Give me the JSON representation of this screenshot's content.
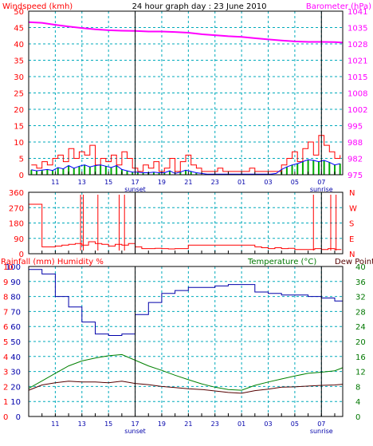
{
  "colors": {
    "wind_axis": "#ff0000",
    "baro_axis": "#ff00ff",
    "grid": "#00aabb",
    "axis_text_dark": "#0000aa",
    "wind_gust": "#ff0000",
    "wind_avg": "#0000ff",
    "wind_low": "#00aa00",
    "baro_line": "#ff00ff",
    "direction": "#ff0000",
    "humidity": "#0000aa",
    "temperature": "#008000",
    "dew_point": "#550000",
    "temp_axis": "#007700"
  },
  "chart_data": [
    {
      "type": "line",
      "title": "24 hour graph day : 23 June 2010",
      "left_axis_label": "Windspeed (kmh)",
      "right_axis_label": "Barometer (hPa)",
      "left_ticks": [
        "50",
        "45",
        "40",
        "35",
        "30",
        "25",
        "20",
        "15",
        "10",
        "5",
        "0"
      ],
      "right_ticks": [
        "1041",
        "1035",
        "1028",
        "1021",
        "1015",
        "1008",
        "1002",
        "995",
        "988",
        "982",
        "975"
      ],
      "x_ticks": [
        "11",
        "13",
        "15",
        "17",
        "19",
        "21",
        "23",
        "01",
        "03",
        "05",
        "07"
      ],
      "x_markers": [
        {
          "hour": 17,
          "label": "sunset"
        },
        {
          "hour": 31,
          "label": "sunrise"
        }
      ],
      "x_range_hours": [
        9.0,
        32.6
      ],
      "ylim_left": [
        0,
        50
      ],
      "ylim_right": [
        975,
        1041
      ],
      "series": [
        {
          "axis": "right",
          "x": [
            9.0,
            10.0,
            11.0,
            12.0,
            13.0,
            14.0,
            15.0,
            16.0,
            17.0,
            18.0,
            19.0,
            20.0,
            21.0,
            22.0,
            23.0,
            24.0,
            25.0,
            26.0,
            27.0,
            28.0,
            29.0,
            30.0,
            31.0,
            32.0,
            32.6
          ],
          "values": [
            1036.6,
            1036.3,
            1035.5,
            1034.8,
            1034.2,
            1033.7,
            1033.3,
            1033.1,
            1033.0,
            1032.8,
            1032.8,
            1032.6,
            1032.3,
            1031.7,
            1031.3,
            1030.9,
            1030.6,
            1030.1,
            1029.6,
            1029.2,
            1028.8,
            1028.6,
            1028.6,
            1028.5,
            1028.3
          ]
        },
        {
          "axis": "left",
          "x": [
            9.2,
            9.6,
            10.0,
            10.4,
            10.8,
            11.2,
            11.6,
            12.0,
            12.4,
            12.8,
            13.2,
            13.6,
            14.0,
            14.4,
            14.8,
            15.2,
            15.6,
            16.0,
            16.4,
            16.8,
            17.2,
            17.6,
            18.0,
            18.4,
            18.8,
            19.2,
            19.6,
            20.0,
            20.4,
            20.8,
            21.2,
            21.6,
            22.0,
            22.4,
            22.8,
            23.2,
            23.6,
            24.0,
            24.4,
            24.8,
            25.2,
            25.6,
            26.0,
            26.4,
            26.8,
            27.2,
            27.6,
            28.0,
            28.4,
            28.8,
            29.2,
            29.6,
            30.0,
            30.4,
            30.8,
            31.2,
            31.6,
            32.0,
            32.4
          ],
          "values": [
            3,
            2,
            4,
            3,
            5,
            6,
            4,
            8,
            5,
            7,
            6,
            9,
            3,
            5,
            4,
            6,
            3,
            7,
            5,
            2,
            1,
            3,
            2,
            4,
            1,
            2,
            5,
            1,
            4,
            6,
            3,
            2,
            1,
            1,
            1,
            2,
            1,
            1,
            1,
            1,
            1,
            2,
            1,
            1,
            1,
            1,
            1,
            3,
            5,
            7,
            4,
            8,
            10,
            6,
            12,
            9,
            7,
            5,
            6
          ]
        },
        {
          "axis": "left",
          "x": [
            9.2,
            9.6,
            10.0,
            10.4,
            10.8,
            11.2,
            11.6,
            12.0,
            12.4,
            12.8,
            13.2,
            13.6,
            14.0,
            14.4,
            14.8,
            15.2,
            15.6,
            16.0,
            16.4,
            16.8,
            17.2,
            17.6,
            18.0,
            18.4,
            18.8,
            19.2,
            19.6,
            20.0,
            20.4,
            20.8,
            21.2,
            21.6,
            22.0,
            22.4,
            22.8,
            23.2,
            23.6,
            24.0,
            24.4,
            24.8,
            25.2,
            25.6,
            26.0,
            26.4,
            26.8,
            27.2,
            27.6,
            28.0,
            28.4,
            28.8,
            29.2,
            29.6,
            30.0,
            30.4,
            30.8,
            31.2,
            31.6,
            32.0,
            32.4
          ],
          "values": [
            1.5,
            1.2,
            1.4,
            1.6,
            1.3,
            2.2,
            1.8,
            2.8,
            2.0,
            2.6,
            3.0,
            2.4,
            2.8,
            3.0,
            2.6,
            2.2,
            2.8,
            1.6,
            1.2,
            0.8,
            0.8,
            0.6,
            0.6,
            0.8,
            0.6,
            0.6,
            1.2,
            0.4,
            0.8,
            1.4,
            1.0,
            0.6,
            0.4,
            0.2,
            0.2,
            0.2,
            0.2,
            0.2,
            0.2,
            0.2,
            0.2,
            0.2,
            0.2,
            0.2,
            0.2,
            0.2,
            0.4,
            1.6,
            2.4,
            3.0,
            3.4,
            4.0,
            4.6,
            4.4,
            4.0,
            4.4,
            3.8,
            3.0,
            3.4
          ]
        }
      ]
    },
    {
      "type": "line",
      "left_axis_label": "",
      "left_ticks": [
        "360",
        "270",
        "180",
        "90",
        "0"
      ],
      "right_ticks": [
        "N",
        "W",
        "S",
        "E",
        "N"
      ],
      "ylim": [
        0,
        360
      ],
      "series": [
        {
          "x": [
            9.0,
            9.5,
            10.0,
            10.5,
            11.0,
            11.5,
            12.0,
            12.5,
            13.0,
            13.5,
            14.0,
            14.5,
            15.0,
            15.5,
            16.0,
            16.5,
            17.0,
            17.5,
            18.0,
            18.5,
            19.0,
            19.5,
            20.0,
            20.5,
            21.0,
            21.5,
            22.0,
            22.5,
            23.0,
            23.5,
            24.0,
            24.5,
            25.0,
            25.5,
            26.0,
            26.5,
            27.0,
            27.5,
            28.0,
            28.5,
            29.0,
            29.5,
            30.0,
            30.5,
            31.0,
            31.5,
            32.0,
            32.5
          ],
          "values": [
            290,
            290,
            40,
            40,
            45,
            50,
            55,
            60,
            50,
            70,
            60,
            55,
            45,
            55,
            50,
            60,
            40,
            30,
            30,
            32,
            30,
            28,
            30,
            30,
            50,
            50,
            50,
            50,
            50,
            50,
            50,
            50,
            50,
            50,
            40,
            35,
            30,
            35,
            30,
            32,
            25,
            25,
            25,
            30,
            25,
            30,
            25,
            25
          ]
        }
      ]
    },
    {
      "type": "line",
      "left_axis_label": "Rainfall (mm)   Humidity %",
      "right_axis_label": "Temperature (°C)",
      "right_axis_label_2": "Dew Point",
      "humidity_ticks": [
        "100",
        "90",
        "80",
        "70",
        "60",
        "50",
        "40",
        "30",
        "20",
        "10",
        "0"
      ],
      "rain_ticks": [
        "10",
        "9",
        "8",
        "7",
        "6",
        "5",
        "4",
        "3",
        "2",
        "1",
        "0"
      ],
      "temp_ticks": [
        "40",
        "36",
        "32",
        "28",
        "24",
        "20",
        "16",
        "12",
        "8",
        "4",
        "0"
      ],
      "ylim_left": [
        0,
        100
      ],
      "ylim_right": [
        0,
        40
      ],
      "series": [
        {
          "axis": "left",
          "x": [
            9.0,
            10.0,
            11.0,
            12.0,
            13.0,
            14.0,
            15.0,
            16.0,
            17.0,
            18.0,
            19.0,
            20.0,
            21.0,
            22.0,
            23.0,
            24.0,
            25.0,
            26.0,
            27.0,
            28.0,
            29.0,
            30.0,
            31.0,
            32.0,
            32.6
          ],
          "values": [
            98,
            95,
            80,
            73,
            63,
            55,
            54,
            55,
            68,
            76,
            82,
            84,
            86,
            86,
            87,
            88,
            88,
            83,
            82,
            81,
            81,
            80,
            79,
            77,
            73
          ]
        },
        {
          "axis": "right",
          "x": [
            9.0,
            10.0,
            11.0,
            12.0,
            13.0,
            14.0,
            15.0,
            16.0,
            17.0,
            18.0,
            19.0,
            20.0,
            21.0,
            22.0,
            23.0,
            24.0,
            25.0,
            26.0,
            27.0,
            28.0,
            29.0,
            30.0,
            31.0,
            32.0,
            32.6
          ],
          "values": [
            7.5,
            9.5,
            11.5,
            13.5,
            14.8,
            15.6,
            16.2,
            16.5,
            15.0,
            13.5,
            12.3,
            11.0,
            9.8,
            8.7,
            7.8,
            7.2,
            7.0,
            8.3,
            9.2,
            10.0,
            10.8,
            11.5,
            11.8,
            12.2,
            13.0
          ]
        },
        {
          "axis": "right",
          "x": [
            9.0,
            10.0,
            11.0,
            12.0,
            13.0,
            14.0,
            15.0,
            16.0,
            17.0,
            18.0,
            19.0,
            20.0,
            21.0,
            22.0,
            23.0,
            24.0,
            25.0,
            26.0,
            27.0,
            28.0,
            29.0,
            30.0,
            31.0,
            32.0,
            32.6
          ],
          "values": [
            7.0,
            8.4,
            9.0,
            9.4,
            9.2,
            9.2,
            9.0,
            9.4,
            8.8,
            8.5,
            8.0,
            7.7,
            7.4,
            7.2,
            6.8,
            6.4,
            6.2,
            6.9,
            7.3,
            7.8,
            7.9,
            8.1,
            8.3,
            8.4,
            8.6
          ]
        }
      ]
    }
  ]
}
